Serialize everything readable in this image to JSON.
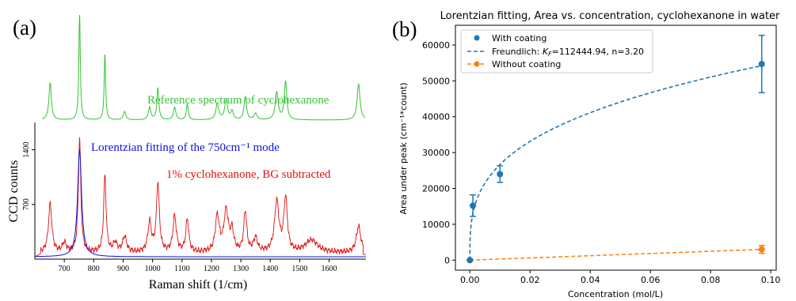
{
  "panel_a": {
    "label": "(a)",
    "xlabel": "Raman shift (1/cm)",
    "ylabel": "CCD counts",
    "annotations": {
      "reference": "Reference spectrum of cyclohexanone",
      "lorentz": "Lorentzian fitting of the 750cm⁻¹ mode",
      "sample": "1% cyclohexanone, BG subtracted"
    },
    "colors": {
      "reference": "#33c433",
      "lorentz": "#1010e0",
      "sample": "#e01010"
    }
  },
  "panel_b": {
    "label": "(b)",
    "legend": {
      "coating": "With coating",
      "fit_prefix": "Freundlich: ",
      "fit_kf": "K",
      "fit_kf_sub": "F",
      "fit_rest": "=112444.94, n=3.20",
      "nocoating": "Without coating"
    },
    "colors": {
      "coating": "#1f77b4",
      "nocoating": "#ff7f0e"
    }
  },
  "chart_data": [
    {
      "type": "line",
      "title": "",
      "xlabel": "Raman shift (1/cm)",
      "ylabel": "CCD counts",
      "xlim": [
        600,
        1725
      ],
      "ylim": [
        0,
        1750
      ],
      "xticks": [
        700,
        800,
        900,
        1000,
        1100,
        1200,
        1300,
        1400,
        1500,
        1600
      ],
      "yticks": [
        700,
        1400
      ],
      "series": [
        {
          "name": "",
          "kind": "sample",
          "baseline": 80,
          "peaks": [
            [
              652,
              620,
              7
            ],
            [
              700,
              120,
              8
            ],
            [
              752,
              1450,
              5
            ],
            [
              838,
              980,
              5
            ],
            [
              873,
              120,
              8
            ],
            [
              905,
              200,
              8
            ],
            [
              990,
              380,
              7
            ],
            [
              1018,
              880,
              6
            ],
            [
              1075,
              460,
              7
            ],
            [
              1118,
              420,
              6
            ],
            [
              1220,
              460,
              8
            ],
            [
              1250,
              520,
              9
            ],
            [
              1270,
              250,
              7
            ],
            [
              1315,
              520,
              6
            ],
            [
              1350,
              180,
              8
            ],
            [
              1422,
              640,
              9
            ],
            [
              1452,
              680,
              7
            ],
            [
              1540,
              160,
              25
            ],
            [
              1700,
              340,
              9
            ]
          ]
        },
        {
          "name": "",
          "kind": "lorentz",
          "center": 752,
          "amplitude": 1380,
          "hwhm": 8,
          "baseline": 30
        },
        {
          "name": "",
          "kind": "reference",
          "peaks": [
            [
              652,
              0.35,
              5
            ],
            [
              752,
              1.0,
              3
            ],
            [
              838,
              0.62,
              3
            ],
            [
              905,
              0.08,
              5
            ],
            [
              990,
              0.12,
              5
            ],
            [
              1018,
              0.3,
              4
            ],
            [
              1075,
              0.12,
              5
            ],
            [
              1118,
              0.15,
              4
            ],
            [
              1220,
              0.15,
              6
            ],
            [
              1250,
              0.18,
              6
            ],
            [
              1270,
              0.08,
              5
            ],
            [
              1315,
              0.22,
              5
            ],
            [
              1350,
              0.06,
              6
            ],
            [
              1422,
              0.26,
              6
            ],
            [
              1452,
              0.36,
              5
            ],
            [
              1700,
              0.34,
              6
            ]
          ]
        }
      ]
    },
    {
      "type": "scatter",
      "title": "Lorentzian fitting, Area vs. concentration, cyclohexanone in water",
      "xlabel": "Concentration (mol/L)",
      "ylabel": "Area under peak (cm⁻¹*count)",
      "xlim": [
        -0.0048,
        0.1018
      ],
      "ylim": [
        -2800,
        65500
      ],
      "xticks": [
        0.0,
        0.02,
        0.04,
        0.06,
        0.08,
        0.1
      ],
      "xtick_labels": [
        "0.00",
        "0.02",
        "0.04",
        "0.06",
        "0.08",
        "0.10"
      ],
      "yticks": [
        0,
        10000,
        20000,
        30000,
        40000,
        50000,
        60000
      ],
      "ytick_labels": [
        "0",
        "10000",
        "20000",
        "30000",
        "40000",
        "50000",
        "60000"
      ],
      "series": [
        {
          "name": "With coating",
          "x": [
            0.0,
            0.001,
            0.01,
            0.097
          ],
          "y": [
            0,
            15200,
            24000,
            54700
          ],
          "yerr": [
            0,
            3000,
            2300,
            8000
          ]
        },
        {
          "name": "Freundlich: K_F=112444.94, n=3.20",
          "kf": 112444.94,
          "n": 3.2
        },
        {
          "name": "Without coating",
          "x": [
            0.0,
            0.097
          ],
          "y": [
            0,
            3000
          ],
          "yerr": [
            0,
            1100
          ]
        }
      ],
      "legend": "top-left"
    }
  ]
}
